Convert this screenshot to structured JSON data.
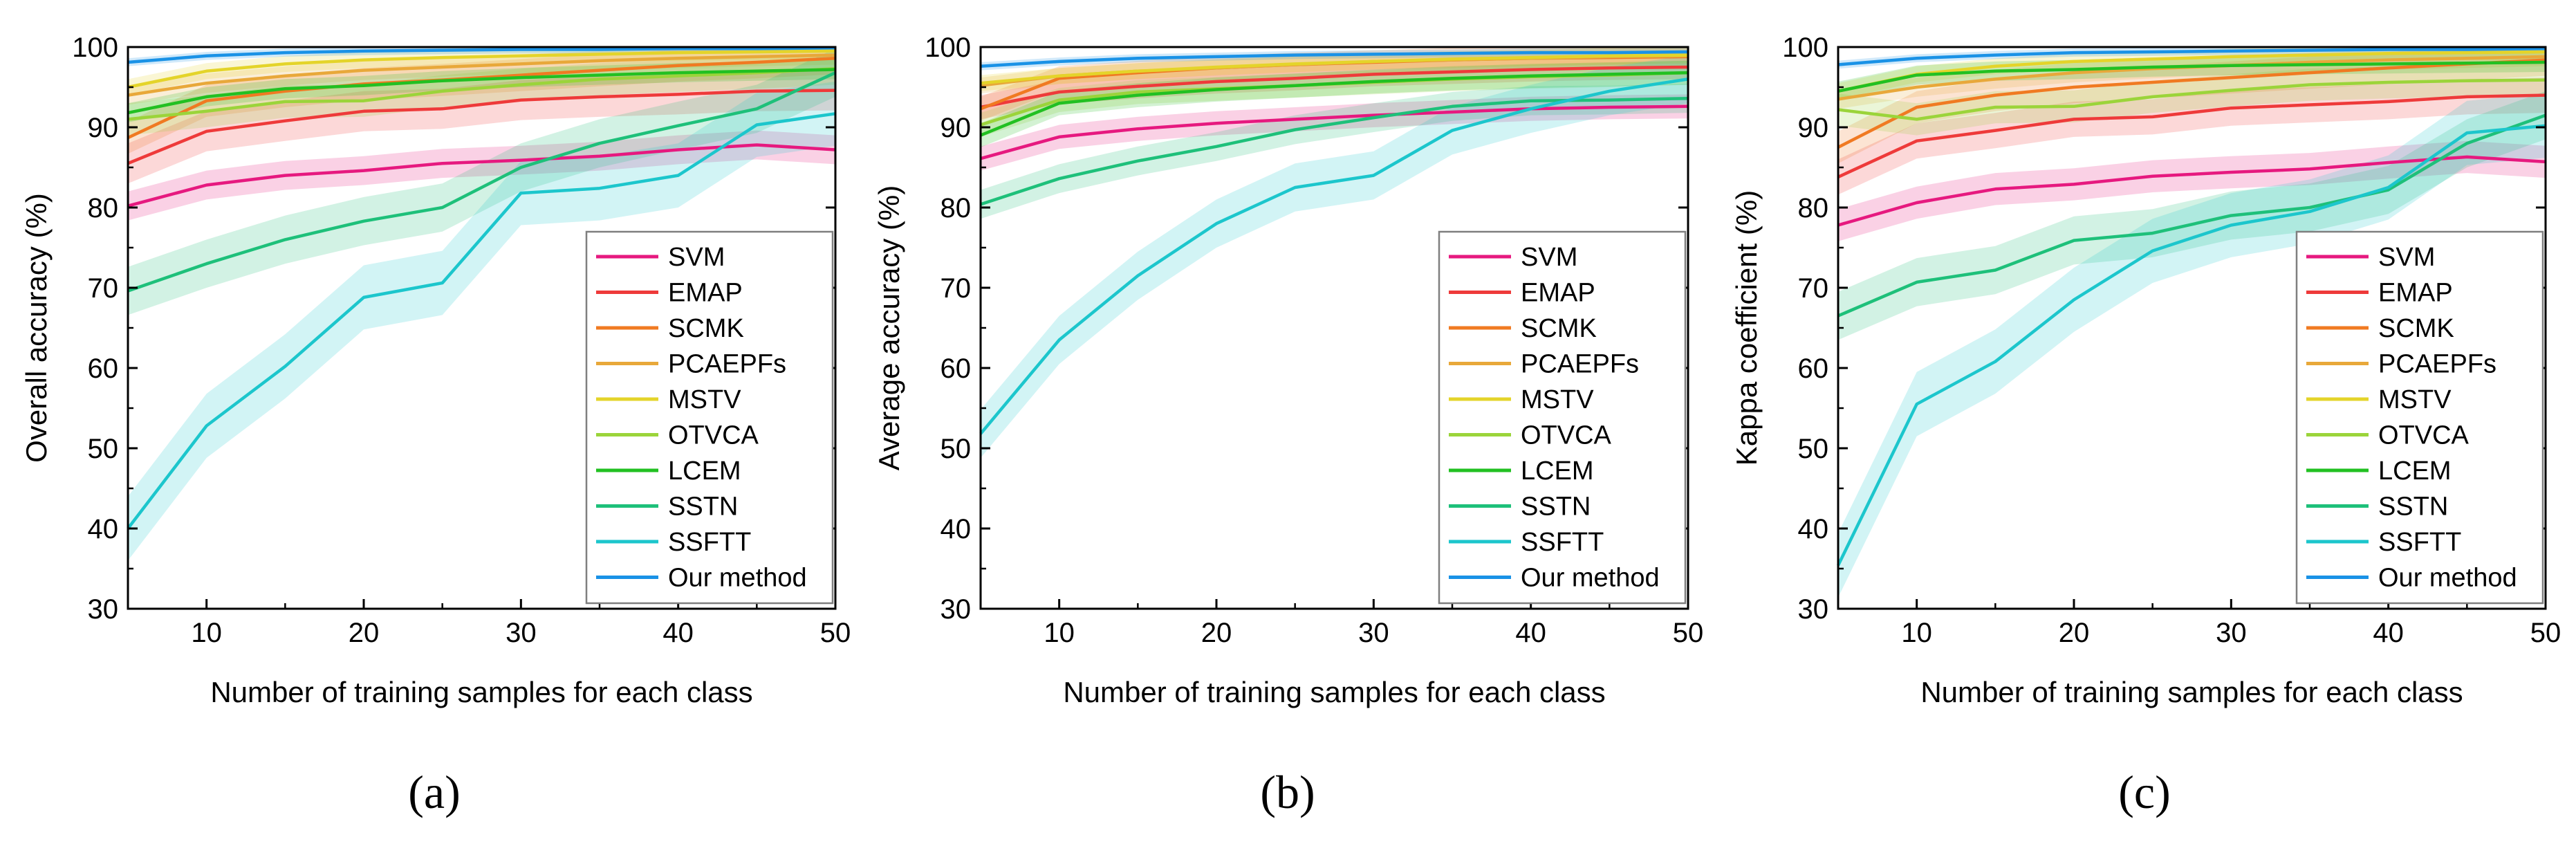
{
  "figure": {
    "panel_labels": [
      "(a)",
      "(b)",
      "(c)"
    ]
  },
  "colors": {
    "SVM": "#e6197f",
    "EMAP": "#ee3a3a",
    "SCMK": "#f07a22",
    "PCAEPFs": "#e8a83a",
    "MSTV": "#e4d42a",
    "OTVCA": "#9bd43a",
    "LCEM": "#22c022",
    "SSTN": "#1ec07a",
    "SSFTT": "#1cc6cc",
    "Our method": "#1a92e6"
  },
  "chart_data": [
    {
      "type": "line",
      "panel": "(a)",
      "xlabel": "Number of training samples for each class",
      "ylabel": "Overall accuracy (%)",
      "xlim": [
        5,
        50
      ],
      "ylim": [
        30,
        100
      ],
      "xticks": [
        10,
        20,
        30,
        40,
        50
      ],
      "yticks": [
        30,
        40,
        50,
        60,
        70,
        80,
        90,
        100
      ],
      "legend_position": "bottom-right",
      "x": [
        5,
        10,
        15,
        20,
        25,
        30,
        35,
        40,
        45,
        50
      ],
      "series": [
        {
          "name": "SVM",
          "values": [
            80.2,
            82.8,
            84.0,
            84.6,
            85.5,
            85.9,
            86.4,
            87.2,
            87.8,
            87.2
          ],
          "band": 1.8
        },
        {
          "name": "EMAP",
          "values": [
            85.5,
            89.5,
            90.8,
            92.0,
            92.3,
            93.4,
            93.8,
            94.1,
            94.5,
            94.6
          ],
          "band": 2.5
        },
        {
          "name": "SCMK",
          "values": [
            88.7,
            93.3,
            94.5,
            95.4,
            95.9,
            96.5,
            97.1,
            97.7,
            98.1,
            98.6
          ],
          "band": 2.0
        },
        {
          "name": "PCAEPFs",
          "values": [
            94.0,
            95.5,
            96.4,
            97.1,
            97.5,
            97.9,
            98.3,
            98.6,
            98.8,
            99.0
          ],
          "band": 1.2
        },
        {
          "name": "MSTV",
          "values": [
            95.0,
            97.0,
            97.9,
            98.4,
            98.7,
            98.9,
            99.1,
            99.3,
            99.4,
            99.5
          ],
          "band": 1.0
        },
        {
          "name": "OTVCA",
          "values": [
            91.0,
            92.0,
            93.2,
            93.3,
            94.5,
            95.3,
            96.0,
            96.4,
            96.8,
            97.3
          ],
          "band": 2.0
        },
        {
          "name": "LCEM",
          "values": [
            91.8,
            93.8,
            94.8,
            95.2,
            95.8,
            96.2,
            96.5,
            96.8,
            97.0,
            97.2
          ],
          "band": 1.2
        },
        {
          "name": "SSTN",
          "values": [
            69.6,
            73.0,
            76.0,
            78.3,
            80.0,
            85.0,
            88.0,
            90.2,
            92.3,
            96.8
          ],
          "band": 3.0
        },
        {
          "name": "SSFTT",
          "values": [
            40.0,
            52.8,
            60.2,
            68.8,
            70.6,
            81.8,
            82.4,
            84.0,
            90.3,
            91.7
          ],
          "band": 4.0
        },
        {
          "name": "Our method",
          "values": [
            98.1,
            98.9,
            99.3,
            99.5,
            99.6,
            99.7,
            99.7,
            99.8,
            99.8,
            99.9
          ],
          "band": 0.5
        }
      ]
    },
    {
      "type": "line",
      "panel": "(b)",
      "xlabel": "Number of training samples for each class",
      "ylabel": "Average accuracy (%)",
      "xlim": [
        5,
        50
      ],
      "ylim": [
        30,
        100
      ],
      "xticks": [
        10,
        20,
        30,
        40,
        50
      ],
      "yticks": [
        30,
        40,
        50,
        60,
        70,
        80,
        90,
        100
      ],
      "legend_position": "bottom-right",
      "x": [
        5,
        10,
        15,
        20,
        25,
        30,
        35,
        40,
        45,
        50
      ],
      "series": [
        {
          "name": "SVM",
          "values": [
            86.1,
            88.8,
            89.8,
            90.5,
            91.0,
            91.5,
            91.9,
            92.3,
            92.5,
            92.6
          ],
          "band": 1.5
        },
        {
          "name": "EMAP",
          "values": [
            92.5,
            94.4,
            95.1,
            95.7,
            96.1,
            96.6,
            96.9,
            97.2,
            97.4,
            97.5
          ],
          "band": 1.5
        },
        {
          "name": "SCMK",
          "values": [
            92.3,
            96.1,
            96.8,
            97.4,
            97.8,
            98.1,
            98.4,
            98.6,
            98.7,
            98.8
          ],
          "band": 1.5
        },
        {
          "name": "PCAEPFs",
          "values": [
            95.2,
            96.4,
            97.0,
            97.4,
            97.8,
            98.2,
            98.4,
            98.6,
            98.8,
            98.9
          ],
          "band": 1.0
        },
        {
          "name": "MSTV",
          "values": [
            95.5,
            96.4,
            97.0,
            97.5,
            97.9,
            98.2,
            98.5,
            98.7,
            98.9,
            99.0
          ],
          "band": 1.0
        },
        {
          "name": "OTVCA",
          "values": [
            90.3,
            93.4,
            94.4,
            94.8,
            95.2,
            95.6,
            96.0,
            96.3,
            96.5,
            96.8
          ],
          "band": 1.5
        },
        {
          "name": "LCEM",
          "values": [
            89.0,
            93.0,
            94.0,
            94.7,
            95.2,
            95.7,
            96.1,
            96.4,
            96.6,
            96.8
          ],
          "band": 1.5
        },
        {
          "name": "SSTN",
          "values": [
            80.4,
            83.6,
            85.8,
            87.6,
            89.7,
            91.2,
            92.6,
            93.3,
            93.4,
            93.6
          ],
          "band": 1.8
        },
        {
          "name": "SSFTT",
          "values": [
            51.8,
            63.5,
            71.5,
            78.0,
            82.5,
            84.0,
            89.6,
            92.3,
            94.5,
            96.0
          ],
          "band": 3.0
        },
        {
          "name": "Our method",
          "values": [
            97.6,
            98.2,
            98.6,
            98.8,
            99.0,
            99.1,
            99.2,
            99.3,
            99.3,
            99.4
          ],
          "band": 0.5
        }
      ]
    },
    {
      "type": "line",
      "panel": "(c)",
      "xlabel": "Number of training samples for each class",
      "ylabel": "Kappa coefficient (%)",
      "xlim": [
        5,
        50
      ],
      "ylim": [
        30,
        100
      ],
      "xticks": [
        10,
        20,
        30,
        40,
        50
      ],
      "yticks": [
        30,
        40,
        50,
        60,
        70,
        80,
        90,
        100
      ],
      "legend_position": "bottom-right",
      "x": [
        5,
        10,
        15,
        20,
        25,
        30,
        35,
        40,
        45,
        50
      ],
      "series": [
        {
          "name": "SVM",
          "values": [
            77.8,
            80.6,
            82.3,
            82.9,
            83.9,
            84.4,
            84.8,
            85.6,
            86.3,
            85.7
          ],
          "band": 2.0
        },
        {
          "name": "EMAP",
          "values": [
            83.8,
            88.3,
            89.6,
            91.0,
            91.3,
            92.4,
            92.8,
            93.2,
            93.8,
            94.0
          ],
          "band": 2.2
        },
        {
          "name": "SCMK",
          "values": [
            87.5,
            92.5,
            94.0,
            95.0,
            95.6,
            96.2,
            96.8,
            97.4,
            97.9,
            98.4
          ],
          "band": 2.0
        },
        {
          "name": "PCAEPFs",
          "values": [
            93.5,
            95.0,
            96.0,
            96.8,
            97.3,
            97.7,
            98.1,
            98.4,
            98.6,
            98.8
          ],
          "band": 1.2
        },
        {
          "name": "MSTV",
          "values": [
            94.5,
            96.6,
            97.6,
            98.2,
            98.5,
            98.8,
            99.0,
            99.2,
            99.3,
            99.4
          ],
          "band": 1.0
        },
        {
          "name": "OTVCA",
          "values": [
            92.2,
            91.0,
            92.5,
            92.6,
            93.8,
            94.6,
            95.3,
            95.6,
            95.8,
            95.9
          ],
          "band": 2.0
        },
        {
          "name": "LCEM",
          "values": [
            94.5,
            96.5,
            97.0,
            97.2,
            97.5,
            97.7,
            97.8,
            97.9,
            98.0,
            98.1
          ],
          "band": 1.2
        },
        {
          "name": "SSTN",
          "values": [
            66.5,
            70.7,
            72.2,
            75.9,
            76.8,
            79.0,
            80.0,
            82.2,
            88.0,
            91.5
          ],
          "band": 3.0
        },
        {
          "name": "SSFTT",
          "values": [
            35.4,
            55.5,
            60.8,
            68.5,
            74.6,
            77.8,
            79.5,
            82.5,
            89.3,
            90.2
          ],
          "band": 4.0
        },
        {
          "name": "Our method",
          "values": [
            97.8,
            98.6,
            99.0,
            99.3,
            99.4,
            99.5,
            99.6,
            99.7,
            99.7,
            99.8
          ],
          "band": 0.5
        }
      ]
    }
  ]
}
